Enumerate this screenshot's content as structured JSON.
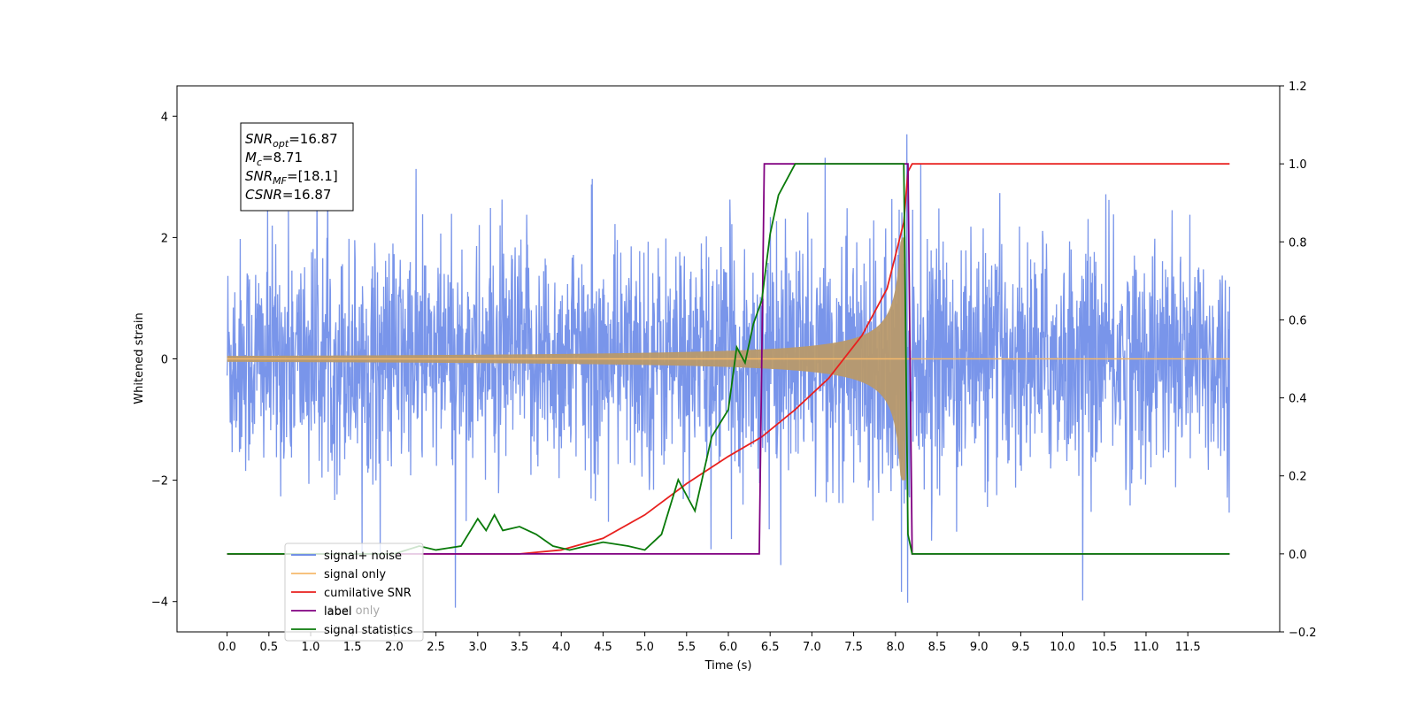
{
  "chart_data": {
    "type": "line",
    "xlabel": "Time (s)",
    "ylabel": "Whitened strain",
    "xlim": [
      -0.6,
      12.6
    ],
    "ylim": [
      -4.5,
      4.5
    ],
    "y2lim": [
      -0.2,
      1.2
    ],
    "x_ticks": [
      "0.0",
      "0.5",
      "1.0",
      "1.5",
      "2.0",
      "2.5",
      "3.0",
      "3.5",
      "4.0",
      "4.5",
      "5.0",
      "5.5",
      "6.0",
      "6.5",
      "7.0",
      "7.5",
      "8.0",
      "8.5",
      "9.0",
      "9.5",
      "10.0",
      "10.5",
      "11.0",
      "11.5"
    ],
    "y_ticks": [
      "4",
      "2",
      "0",
      "−2",
      "−4"
    ],
    "y2_ticks": [
      "1.2",
      "1.0",
      "0.8",
      "0.6",
      "0.4",
      "0.2",
      "0.0",
      "−0.2"
    ],
    "annotation": [
      {
        "name": "SNR",
        "sub": "opt",
        "value": "=16.87"
      },
      {
        "name": "M",
        "sub": "c",
        "value": "=8.71"
      },
      {
        "name": "SNR",
        "sub": "MF",
        "value": "=[18.1]"
      },
      {
        "name": "CSNR",
        "sub": "",
        "value": "=16.87"
      }
    ],
    "legend": {
      "placement": "lower-left",
      "entries": [
        "signal+ noise",
        "signal only",
        "cumilative SNR",
        "label",
        "signal statistics"
      ],
      "occluded_text": "label only"
    },
    "series": [
      {
        "name": "signal+ noise",
        "axis": "left",
        "color": "#6283e6",
        "description": "whitened noise plus chirp, amplitude about ±2.7 with spikes to ±4.1, from t=0 to t=12"
      },
      {
        "name": "signal only",
        "axis": "left",
        "color": "#f6b96b",
        "chirp": {
          "t_start": 0.0,
          "t_merge": 8.12,
          "t_end": 12.0,
          "amp_peak": 2.0
        }
      },
      {
        "name": "cumilative SNR",
        "axis": "right",
        "color": "#e8201e",
        "x": [
          0,
          3.5,
          4.0,
          4.5,
          5.0,
          5.5,
          6.0,
          6.4,
          6.8,
          7.2,
          7.6,
          7.9,
          8.1,
          8.15,
          8.2,
          12.0
        ],
        "y": [
          0,
          0.0,
          0.01,
          0.04,
          0.1,
          0.18,
          0.25,
          0.3,
          0.37,
          0.45,
          0.56,
          0.68,
          0.85,
          0.98,
          1.0,
          1.0
        ]
      },
      {
        "name": "label",
        "axis": "right",
        "color": "#800080",
        "x": [
          0,
          6.37,
          6.43,
          8.15,
          8.2,
          12.0
        ],
        "y": [
          0,
          0,
          1,
          1,
          0,
          0
        ]
      },
      {
        "name": "signal statistics",
        "axis": "right",
        "color": "#0a7a0a",
        "x": [
          0,
          2.0,
          2.3,
          2.5,
          2.8,
          3.0,
          3.1,
          3.2,
          3.3,
          3.5,
          3.7,
          3.9,
          4.1,
          4.3,
          4.5,
          4.8,
          5.0,
          5.2,
          5.4,
          5.6,
          5.8,
          6.0,
          6.1,
          6.2,
          6.3,
          6.4,
          6.5,
          6.6,
          6.7,
          6.8,
          7.0,
          7.5,
          8.1,
          8.15,
          8.2,
          12.0
        ],
        "y": [
          0,
          0,
          0.02,
          0.01,
          0.02,
          0.09,
          0.06,
          0.1,
          0.06,
          0.07,
          0.05,
          0.02,
          0.01,
          0.02,
          0.03,
          0.02,
          0.01,
          0.05,
          0.19,
          0.11,
          0.3,
          0.37,
          0.53,
          0.49,
          0.59,
          0.65,
          0.82,
          0.92,
          0.96,
          1.0,
          1.0,
          1.0,
          1.0,
          0.05,
          0.0,
          0.0
        ]
      }
    ]
  }
}
